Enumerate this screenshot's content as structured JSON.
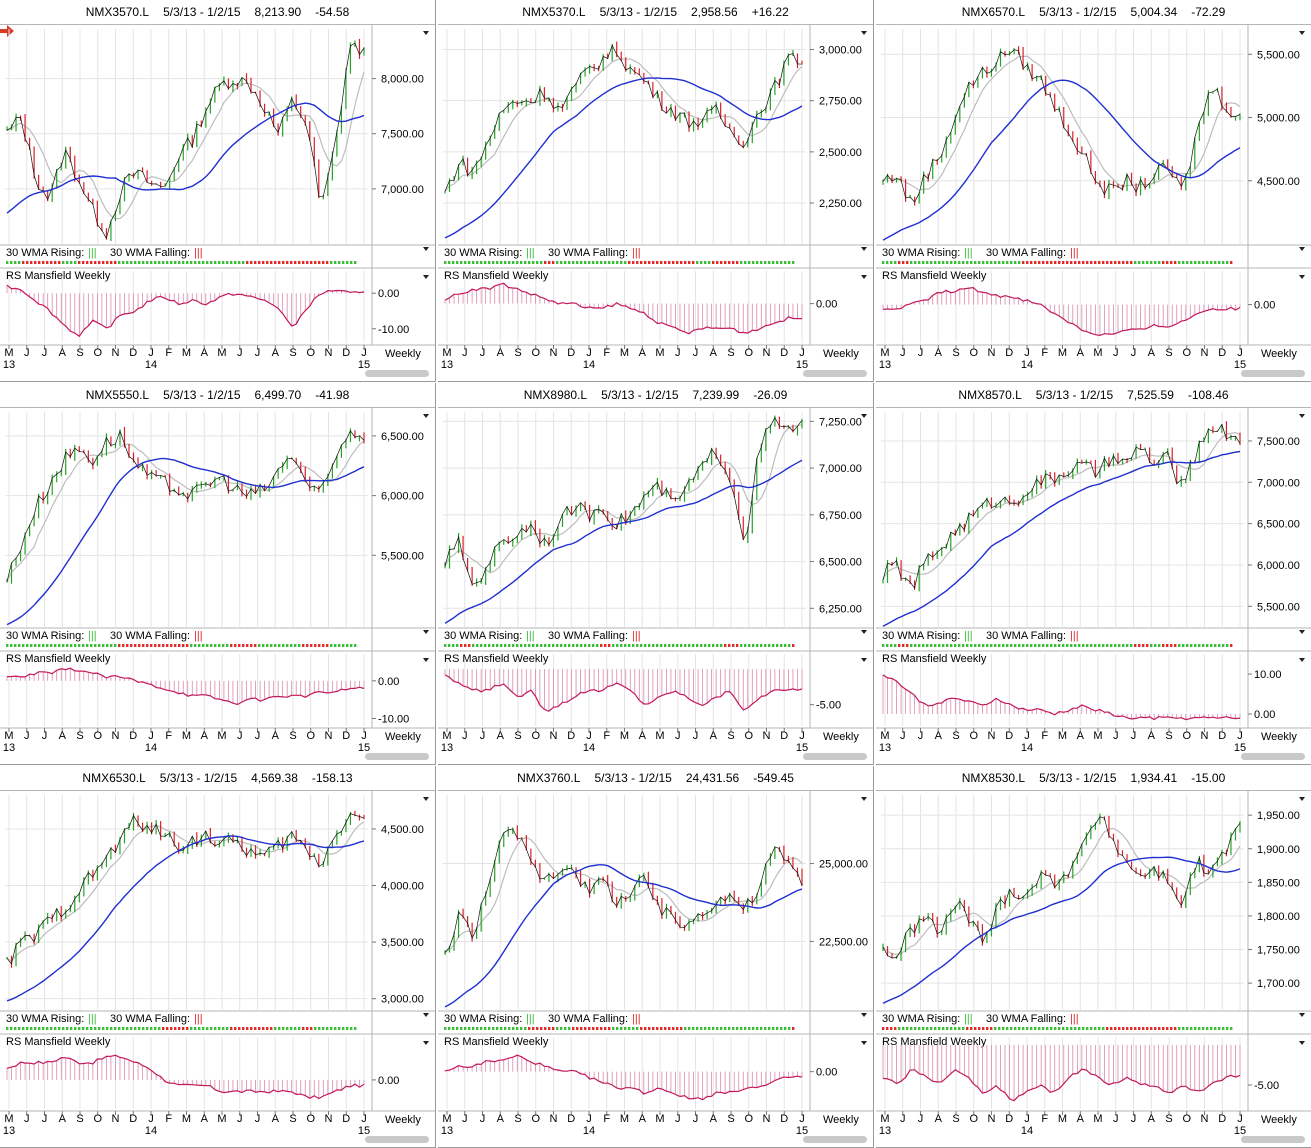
{
  "colors": {
    "up": "#24a324",
    "down": "#d8202a",
    "ma30": "#1f2fd0",
    "ma10": "#bdbdbd",
    "rs": "#c2185b",
    "rising": "#3bbf3b",
    "falling": "#e02a2a",
    "grid": "#e4e4e4"
  },
  "labels": {
    "wma_rising": "30 WMA Rising:",
    "wma_falling": "30 WMA Falling:",
    "rising_mark": "|||",
    "falling_mark": "|||",
    "rs": "RS Mansfield Weekly",
    "weekly": "Weekly"
  },
  "months": [
    "M",
    "J",
    "J",
    "A",
    "S",
    "O",
    "N",
    "D",
    "J",
    "F",
    "M",
    "A",
    "M",
    "J",
    "J",
    "A",
    "S",
    "O",
    "N",
    "D",
    "J"
  ],
  "years": [
    "13",
    "14",
    "15"
  ],
  "panels": [
    {
      "symbol": "NMX3570.L",
      "range": "5/3/13 - 1/2/15",
      "last": "8,213.90",
      "change": "-54.58",
      "chart_data": {
        "type": "line",
        "ylim": [
          6500,
          8450
        ],
        "yticks": [
          7000,
          7500,
          8000
        ],
        "yticklabels": [
          "7,000.00",
          "7,500.00",
          "8,000.00"
        ],
        "price": [
          7500,
          7650,
          7100,
          6900,
          7350,
          7100,
          6800,
          6600,
          7000,
          7150,
          7050,
          7000,
          7300,
          7450,
          7750,
          7950,
          8000,
          7950,
          7750,
          7500,
          7800,
          7600,
          6800,
          7400,
          8300,
          8250
        ],
        "rs": [
          2,
          1,
          -2,
          -5,
          -9,
          -12,
          -8,
          -10,
          -6,
          -5,
          -2,
          -1,
          -3,
          -2,
          -3,
          -1,
          0,
          -1,
          -2,
          -4,
          -10,
          -4,
          0,
          1,
          0,
          0
        ],
        "rslim": [
          -14,
          4
        ],
        "rsticks": [
          0,
          -10
        ],
        "rsticklabels": [
          "0.00",
          "-10.00"
        ],
        "ma30_start": 6780,
        "ma30_end": 7700
      }
    },
    {
      "symbol": "NMX5370.L",
      "range": "5/3/13 - 1/2/15",
      "last": "2,958.56",
      "change": "+16.22",
      "chart_data": {
        "type": "line",
        "ylim": [
          2050,
          3100
        ],
        "yticks": [
          2250,
          2500,
          2750,
          3000
        ],
        "yticklabels": [
          "2,250.00",
          "2,500.00",
          "2,750.00",
          "3,000.00"
        ],
        "price": [
          2300,
          2450,
          2400,
          2550,
          2700,
          2750,
          2750,
          2800,
          2700,
          2800,
          2900,
          2950,
          3000,
          2900,
          2850,
          2750,
          2700,
          2650,
          2650,
          2700,
          2600,
          2550,
          2700,
          2800,
          2950,
          2950
        ],
        "rs": [
          1,
          2,
          3,
          3,
          4,
          3,
          2,
          1,
          0,
          0,
          -1,
          -1,
          0,
          -1,
          -2,
          -4,
          -5,
          -6,
          -5,
          -5,
          -5,
          -6,
          -5,
          -4,
          -3,
          -3
        ],
        "rslim": [
          -8,
          5
        ],
        "rsticks": [
          0
        ],
        "rsticklabels": [
          "0.00"
        ],
        "ma30_start": 2080,
        "ma30_end": 2740
      }
    },
    {
      "symbol": "NMX6570.L",
      "range": "5/3/13 - 1/2/15",
      "last": "5,004.34",
      "change": "-72.29",
      "chart_data": {
        "type": "line",
        "ylim": [
          4000,
          5700
        ],
        "yticks": [
          4500,
          5000,
          5500
        ],
        "yticklabels": [
          "4,500.00",
          "5,000.00",
          "5,500.00"
        ],
        "price": [
          4500,
          4550,
          4300,
          4550,
          4700,
          5000,
          5250,
          5350,
          5450,
          5550,
          5400,
          5300,
          5100,
          4900,
          4700,
          4500,
          4400,
          4500,
          4450,
          4550,
          4600,
          4400,
          4900,
          5250,
          5100,
          5000
        ],
        "rs": [
          -1,
          -1,
          0,
          1,
          3,
          3,
          4,
          3,
          2,
          2,
          1,
          0,
          -2,
          -4,
          -6,
          -7,
          -7,
          -6,
          -6,
          -5,
          -5,
          -4,
          -2,
          -1,
          -1,
          -1
        ],
        "rslim": [
          -9,
          6
        ],
        "rsticks": [
          0
        ],
        "rsticklabels": [
          "0.00"
        ],
        "ma30_start": 4030,
        "ma30_end": 4640
      }
    },
    {
      "symbol": "NMX5550.L",
      "range": "5/3/13 - 1/2/15",
      "last": "6,499.70",
      "change": "-41.98",
      "chart_data": {
        "type": "line",
        "ylim": [
          4900,
          6700
        ],
        "yticks": [
          5500,
          6000,
          6500
        ],
        "yticklabels": [
          "5,500.00",
          "6,000.00",
          "6,500.00"
        ],
        "price": [
          5300,
          5600,
          5900,
          6100,
          6300,
          6400,
          6300,
          6450,
          6500,
          6250,
          6150,
          6100,
          6050,
          6000,
          6100,
          6150,
          6050,
          6000,
          6050,
          6200,
          6350,
          6100,
          6000,
          6300,
          6550,
          6500
        ],
        "rs": [
          1,
          1,
          2,
          2,
          3,
          3,
          2,
          1,
          1,
          0,
          -1,
          -2,
          -3,
          -4,
          -4,
          -5,
          -6,
          -5,
          -5,
          -4,
          -4,
          -4,
          -3,
          -3,
          -2,
          -2
        ],
        "rslim": [
          -12,
          5
        ],
        "rsticks": [
          0,
          -10
        ],
        "rsticklabels": [
          "0.00",
          "-10.00"
        ],
        "ma30_start": 4920,
        "ma30_end": 6200
      }
    },
    {
      "symbol": "NMX8980.L",
      "range": "5/3/13 - 1/2/15",
      "last": "7,239.99",
      "change": "-26.09",
      "chart_data": {
        "type": "line",
        "ylim": [
          6150,
          7300
        ],
        "yticks": [
          6250,
          6500,
          6750,
          7000,
          7250
        ],
        "yticklabels": [
          "6,250.00",
          "6,500.00",
          "6,750.00",
          "7,000.00",
          "7,250.00"
        ],
        "price": [
          6500,
          6600,
          6350,
          6500,
          6600,
          6650,
          6700,
          6600,
          6700,
          6800,
          6750,
          6800,
          6700,
          6750,
          6850,
          6900,
          6800,
          6900,
          7000,
          7100,
          6950,
          6600,
          7100,
          7250,
          7200,
          7240
        ],
        "rs": [
          -1,
          -2,
          -3,
          -3,
          -2,
          -4,
          -3,
          -6,
          -5,
          -4,
          -3,
          -3,
          -2,
          -3,
          -5,
          -4,
          -3,
          -4,
          -5,
          -4,
          -3,
          -6,
          -4,
          -3,
          -3,
          -3
        ],
        "rslim": [
          -8,
          1
        ],
        "rsticks": [
          -5
        ],
        "rsticklabels": [
          "-5.00"
        ],
        "ma30_start": 6170,
        "ma30_end": 7000
      }
    },
    {
      "symbol": "NMX8570.L",
      "range": "5/3/13 - 1/2/15",
      "last": "7,525.59",
      "change": "-108.46",
      "chart_data": {
        "type": "line",
        "ylim": [
          5250,
          7850
        ],
        "yticks": [
          5500,
          6000,
          6500,
          7000,
          7500
        ],
        "yticklabels": [
          "5,500.00",
          "6,000.00",
          "6,500.00",
          "7,000.00",
          "7,500.00"
        ],
        "price": [
          5900,
          6000,
          5700,
          6050,
          6200,
          6400,
          6550,
          6700,
          6800,
          6750,
          6900,
          7000,
          7050,
          7150,
          7200,
          7100,
          7300,
          7200,
          7450,
          7200,
          7300,
          6900,
          7400,
          7700,
          7600,
          7525
        ],
        "rs": [
          10,
          8,
          5,
          2,
          3,
          4,
          3,
          2,
          4,
          2,
          1,
          1,
          0,
          1,
          2,
          1,
          0,
          -1,
          -1,
          -1,
          -1,
          -1,
          -1,
          -1,
          -1,
          -1
        ],
        "rslim": [
          -3,
          13
        ],
        "rsticks": [
          10,
          0
        ],
        "rsticklabels": [
          "10.00",
          "0.00"
        ],
        "ma30_start": 5260,
        "ma30_end": 7300
      }
    },
    {
      "symbol": "NMX6530.L",
      "range": "5/3/13 - 1/2/15",
      "last": "4,569.38",
      "change": "-158.13",
      "chart_data": {
        "type": "line",
        "ylim": [
          2900,
          4800
        ],
        "yticks": [
          3000,
          3500,
          4000,
          4500
        ],
        "yticklabels": [
          "3,000.00",
          "3,500.00",
          "4,000.00",
          "4,500.00"
        ],
        "price": [
          3300,
          3500,
          3550,
          3700,
          3800,
          3950,
          4100,
          4250,
          4400,
          4600,
          4500,
          4450,
          4350,
          4400,
          4450,
          4350,
          4400,
          4300,
          4250,
          4350,
          4450,
          4300,
          4200,
          4450,
          4650,
          4569
        ],
        "rs": [
          2,
          3,
          3,
          3,
          4,
          3,
          3,
          4,
          4,
          3,
          2,
          0,
          -1,
          -1,
          -1,
          -2,
          -2,
          -2,
          -2,
          -2,
          -2,
          -3,
          -3,
          -2,
          -1,
          -1
        ],
        "rslim": [
          -5,
          6
        ],
        "rsticks": [
          0
        ],
        "rsticklabels": [
          "0.00"
        ],
        "ma30_start": 2980,
        "ma30_end": 4420
      }
    },
    {
      "symbol": "NMX3760.L",
      "range": "5/3/13 - 1/2/15",
      "last": "24,431.56",
      "change": "-549.45",
      "chart_data": {
        "type": "line",
        "ylim": [
          20300,
          27200
        ],
        "yticks": [
          22500,
          25000
        ],
        "yticklabels": [
          "22,500.00",
          "25,000.00"
        ],
        "price": [
          22000,
          23500,
          22500,
          24500,
          25800,
          26000,
          25000,
          24500,
          24800,
          25000,
          24000,
          24500,
          23800,
          24000,
          24500,
          23500,
          23200,
          23000,
          23500,
          23800,
          24000,
          23500,
          24200,
          25500,
          25000,
          24431
        ],
        "rs": [
          0,
          1,
          1,
          2,
          2,
          3,
          2,
          1,
          0,
          0,
          -1,
          -2,
          -3,
          -3,
          -4,
          -3,
          -4,
          -5,
          -5,
          -4,
          -4,
          -3,
          -3,
          -2,
          -1,
          -1
        ],
        "rslim": [
          -7,
          5
        ],
        "rsticks": [
          0
        ],
        "rsticklabels": [
          "0.00"
        ],
        "ma30_start": 20400,
        "ma30_end": 24000
      }
    },
    {
      "symbol": "NMX8530.L",
      "range": "5/3/13 - 1/2/15",
      "last": "1,934.41",
      "change": "-15.00",
      "chart_data": {
        "type": "line",
        "ylim": [
          1660,
          1980
        ],
        "yticks": [
          1700,
          1750,
          1800,
          1850,
          1900,
          1950
        ],
        "yticklabels": [
          "1,700.00",
          "1,750.00",
          "1,800.00",
          "1,850.00",
          "1,900.00",
          "1,950.00"
        ],
        "price": [
          1750,
          1740,
          1780,
          1800,
          1770,
          1820,
          1800,
          1760,
          1810,
          1840,
          1830,
          1860,
          1850,
          1870,
          1900,
          1950,
          1920,
          1880,
          1860,
          1870,
          1850,
          1820,
          1880,
          1860,
          1900,
          1934
        ],
        "rs": [
          -4,
          -5,
          -3,
          -4,
          -5,
          -3,
          -4,
          -6,
          -5,
          -7,
          -6,
          -5,
          -6,
          -4,
          -3,
          -4,
          -5,
          -4,
          -5,
          -5,
          -6,
          -5,
          -6,
          -5,
          -4,
          -4
        ],
        "rslim": [
          -8,
          0
        ],
        "rsticks": [
          -5
        ],
        "rsticklabels": [
          "-5.00"
        ],
        "ma30_start": 1670,
        "ma30_end": 1890
      }
    }
  ]
}
